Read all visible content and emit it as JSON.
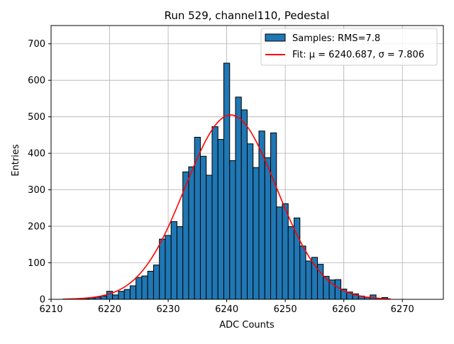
{
  "chart_data": {
    "type": "bar",
    "title": "Run 529, channel110, Pedestal",
    "xlabel": "ADC Counts",
    "ylabel": "Entries",
    "xlim": [
      6210,
      6277
    ],
    "ylim": [
      0,
      750
    ],
    "xticks": [
      6210,
      6220,
      6230,
      6240,
      6250,
      6260,
      6270
    ],
    "yticks": [
      0,
      100,
      200,
      300,
      400,
      500,
      600,
      700
    ],
    "grid": true,
    "legend_position": "top-right",
    "bin_width": 1,
    "histogram": {
      "name": "Samples: RMS=7.8",
      "color": "#1f77b4",
      "bins": [
        [
          6213,
          1
        ],
        [
          6214,
          1
        ],
        [
          6215,
          1
        ],
        [
          6216,
          2
        ],
        [
          6217,
          4
        ],
        [
          6218,
          6
        ],
        [
          6219,
          9
        ],
        [
          6220,
          22
        ],
        [
          6221,
          12
        ],
        [
          6222,
          22
        ],
        [
          6223,
          27
        ],
        [
          6224,
          37
        ],
        [
          6225,
          60
        ],
        [
          6226,
          64
        ],
        [
          6227,
          77
        ],
        [
          6228,
          94
        ],
        [
          6229,
          165
        ],
        [
          6230,
          175
        ],
        [
          6231,
          213
        ],
        [
          6232,
          199
        ],
        [
          6233,
          349
        ],
        [
          6234,
          363
        ],
        [
          6235,
          444
        ],
        [
          6236,
          392
        ],
        [
          6237,
          340
        ],
        [
          6238,
          473
        ],
        [
          6239,
          438
        ],
        [
          6240,
          647
        ],
        [
          6241,
          380
        ],
        [
          6242,
          554
        ],
        [
          6243,
          519
        ],
        [
          6244,
          426
        ],
        [
          6245,
          361
        ],
        [
          6246,
          461
        ],
        [
          6247,
          388
        ],
        [
          6248,
          456
        ],
        [
          6249,
          253
        ],
        [
          6250,
          262
        ],
        [
          6251,
          199
        ],
        [
          6252,
          223
        ],
        [
          6253,
          146
        ],
        [
          6254,
          105
        ],
        [
          6255,
          115
        ],
        [
          6256,
          96
        ],
        [
          6257,
          63
        ],
        [
          6258,
          53
        ],
        [
          6259,
          54
        ],
        [
          6260,
          28
        ],
        [
          6261,
          20
        ],
        [
          6262,
          15
        ],
        [
          6263,
          9
        ],
        [
          6264,
          6
        ],
        [
          6265,
          12
        ],
        [
          6266,
          3
        ],
        [
          6267,
          5
        ]
      ]
    },
    "fit": {
      "name": "Fit: μ = 6240.687, σ = 7.806",
      "color": "#ff0000",
      "mu": 6240.687,
      "sigma": 7.806,
      "amplitude": 505,
      "x_range": [
        6212,
        6268
      ]
    }
  }
}
